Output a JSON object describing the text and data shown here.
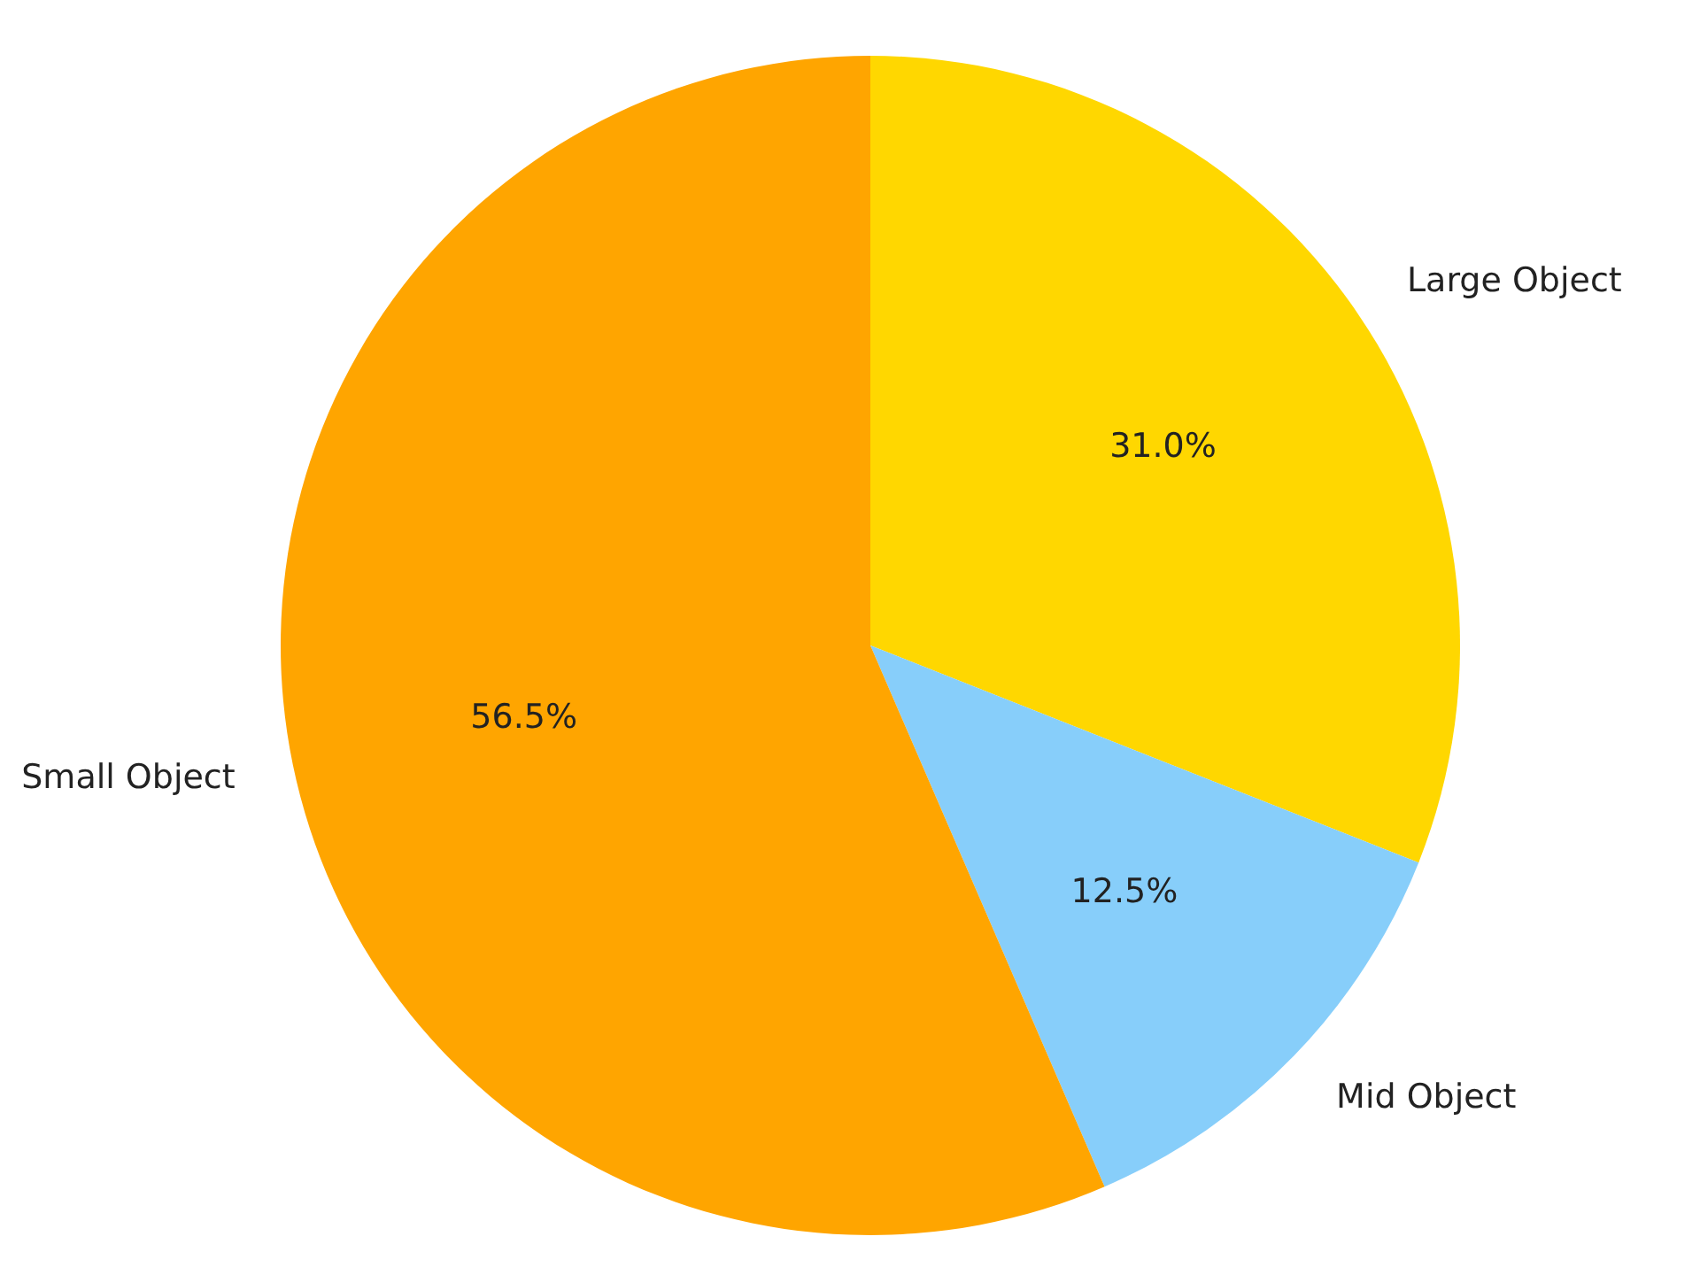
{
  "chart_data": {
    "type": "pie",
    "categories": [
      "Large Object",
      "Mid Object",
      "Small Object"
    ],
    "values": [
      31.0,
      12.5,
      56.5
    ],
    "colors": [
      "#ffd700",
      "#87cefa",
      "#ffa500"
    ],
    "value_labels": [
      "31.0%",
      "12.5%",
      "56.5%"
    ]
  }
}
